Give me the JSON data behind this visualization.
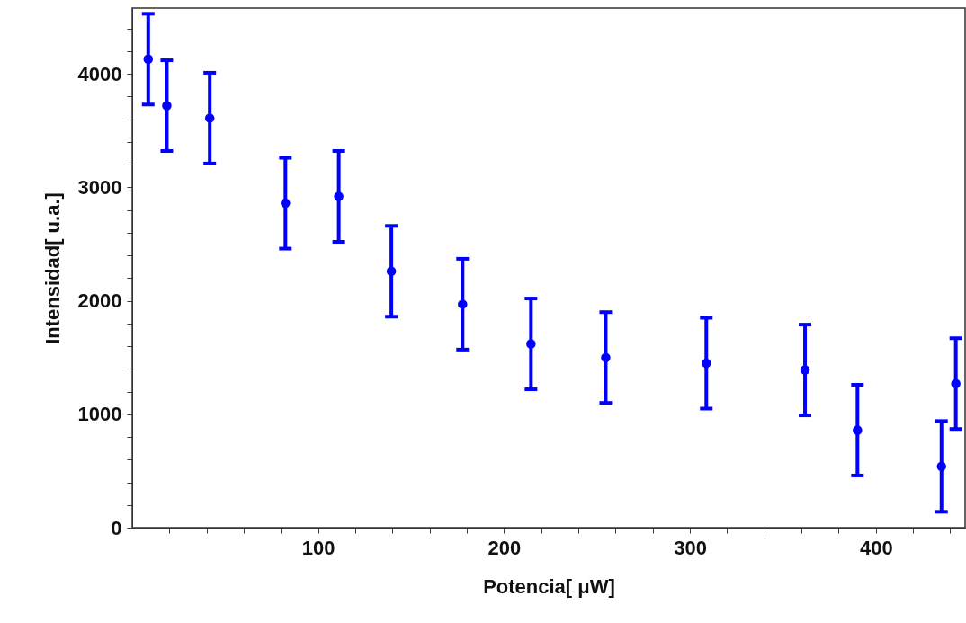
{
  "chart_data": {
    "type": "scatter",
    "xlabel": "Potencia[ μW]",
    "ylabel": "Intensidad[ u.a.]",
    "x": [
      8.6,
      18.6,
      41.7,
      82.4,
      111.1,
      139.4,
      177.7,
      214.5,
      254.7,
      308.8,
      361.9,
      390.1,
      435.3,
      443
    ],
    "series": [
      {
        "color": "#0000ff",
        "values": [
          4130,
          3720,
          3610,
          2860,
          2920,
          2260,
          1970,
          1620,
          1500,
          1450,
          1390,
          860,
          540,
          1270
        ],
        "errors": [
          400,
          400,
          400,
          400,
          400,
          400,
          400,
          400,
          400,
          400,
          400,
          400,
          400,
          400
        ]
      }
    ],
    "xlim": [
      0,
      448
    ],
    "xticks": [
      {
        "value": 20,
        "label": null
      },
      {
        "value": 40,
        "label": null
      },
      {
        "value": 60,
        "label": null
      },
      {
        "value": 80,
        "label": null
      },
      100,
      {
        "value": 120,
        "label": null
      },
      {
        "value": 140,
        "label": null
      },
      {
        "value": 160,
        "label": null
      },
      {
        "value": 180,
        "label": null
      },
      200,
      {
        "value": 220,
        "label": null
      },
      {
        "value": 240,
        "label": null
      },
      {
        "value": 260,
        "label": null
      },
      {
        "value": 280,
        "label": null
      },
      300,
      {
        "value": 320,
        "label": null
      },
      {
        "value": 340,
        "label": null
      },
      {
        "value": 360,
        "label": null
      },
      {
        "value": 380,
        "label": null
      },
      400,
      {
        "value": 420,
        "label": null
      },
      {
        "value": 440,
        "label": null
      }
    ],
    "ylim": [
      0,
      4580
    ],
    "yticks": [
      0,
      {
        "value": 200,
        "label": null
      },
      {
        "value": 400,
        "label": null
      },
      {
        "value": 600,
        "label": null
      },
      {
        "value": 800,
        "label": null
      },
      1000,
      {
        "value": 1200,
        "label": null
      },
      {
        "value": 1400,
        "label": null
      },
      {
        "value": 1600,
        "label": null
      },
      {
        "value": 1800,
        "label": null
      },
      2000,
      {
        "value": 2200,
        "label": null
      },
      {
        "value": 2400,
        "label": null
      },
      {
        "value": 2600,
        "label": null
      },
      {
        "value": 2800,
        "label": null
      },
      3000,
      {
        "value": 3200,
        "label": null
      },
      {
        "value": 3400,
        "label": null
      },
      {
        "value": 3600,
        "label": null
      },
      {
        "value": 3800,
        "label": null
      },
      4000,
      {
        "value": 4200,
        "label": null
      },
      {
        "value": 4400,
        "label": null
      }
    ],
    "marker": "circle",
    "grid": false
  }
}
